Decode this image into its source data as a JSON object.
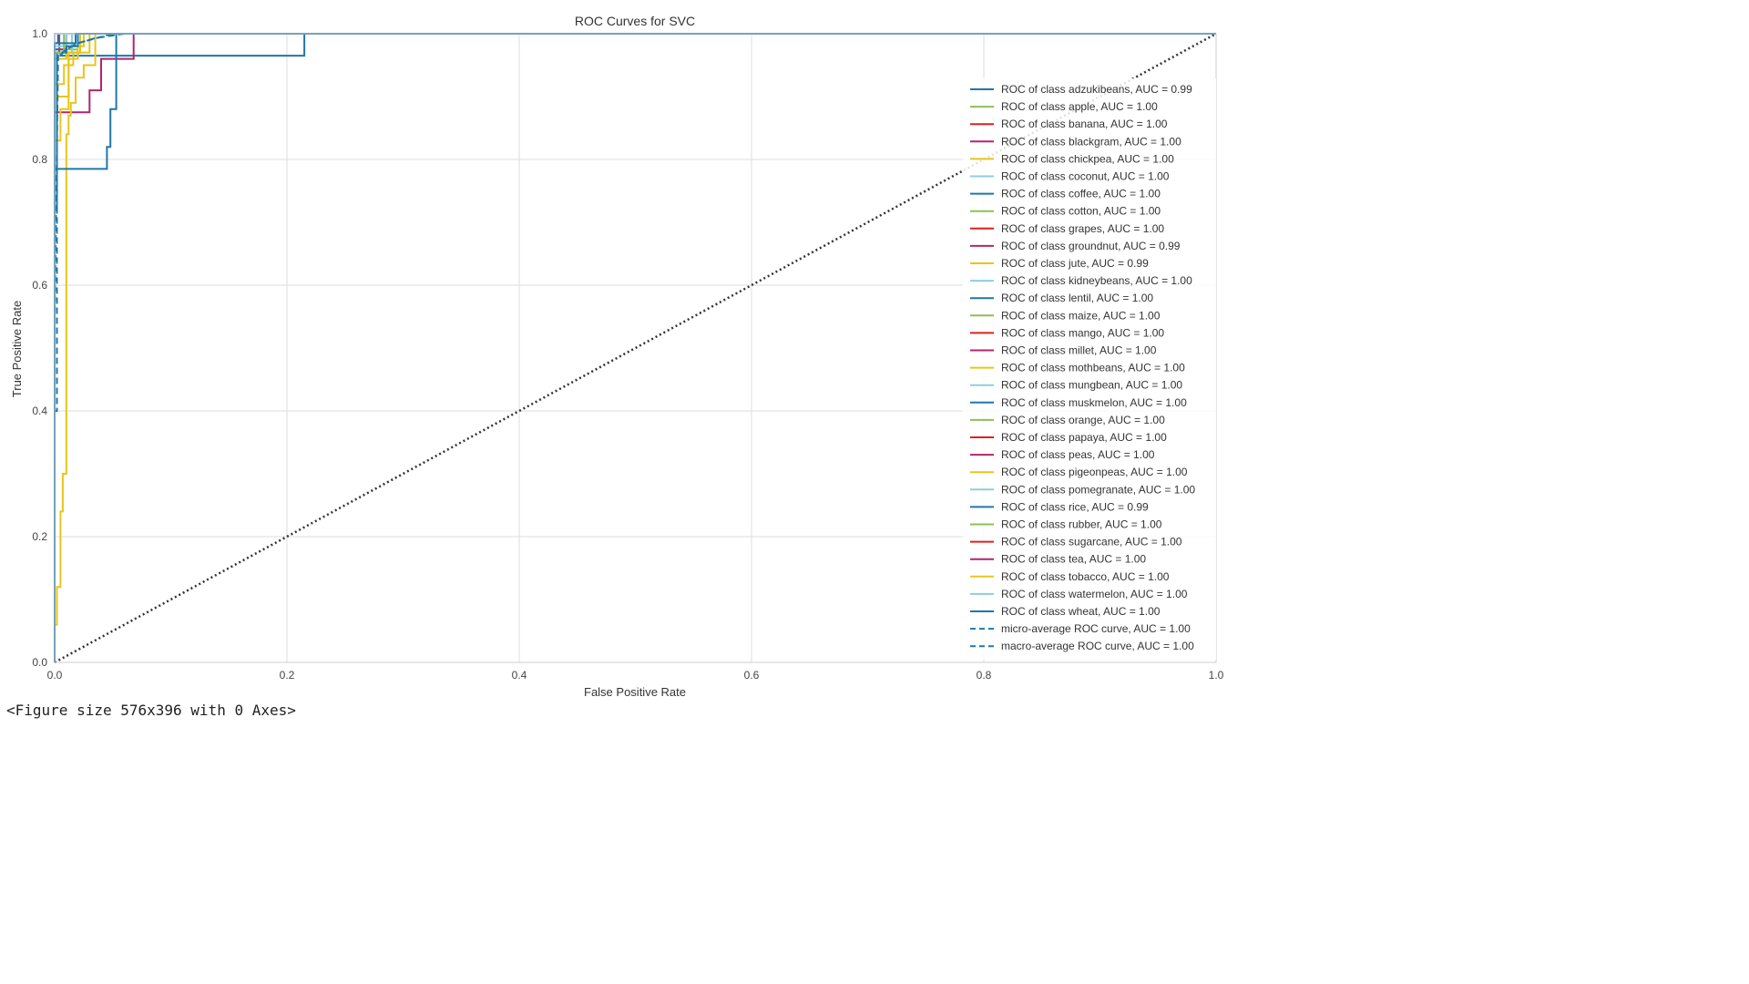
{
  "output_caption": "<Figure size 576x396 with 0 Axes>",
  "chart_data": {
    "type": "line",
    "title": "ROC Curves for SVC",
    "xlabel": "False Positive Rate",
    "ylabel": "True Positive Rate",
    "xlim": [
      0.0,
      1.0
    ],
    "ylim": [
      0.0,
      1.0
    ],
    "xticks": [
      "0.0",
      "0.2",
      "0.4",
      "0.6",
      "0.8",
      "1.0"
    ],
    "yticks": [
      "0.0",
      "0.2",
      "0.4",
      "0.6",
      "0.8",
      "1.0"
    ],
    "grid": true,
    "legend_position": "center-right",
    "colors": [
      "#1f77a8",
      "#8cc152",
      "#e0211e",
      "#b5246a",
      "#e8c51a",
      "#8fcde0"
    ],
    "series": [
      {
        "name": "ROC of class adzukibeans, AUC = 0.99",
        "color": "#1f77a8",
        "style": "solid",
        "x": [
          0,
          0,
          0.005,
          0.005,
          0.215,
          0.215,
          1
        ],
        "y": [
          0,
          0.97,
          0.97,
          0.965,
          0.965,
          1,
          1
        ]
      },
      {
        "name": "ROC of class apple, AUC = 1.00",
        "color": "#8cc152",
        "style": "solid",
        "x": [
          0,
          0,
          1
        ],
        "y": [
          0,
          1,
          1
        ]
      },
      {
        "name": "ROC of class banana, AUC = 1.00",
        "color": "#e0211e",
        "style": "solid",
        "x": [
          0,
          0,
          1
        ],
        "y": [
          0,
          1,
          1
        ]
      },
      {
        "name": "ROC of class blackgram, AUC = 1.00",
        "color": "#b5246a",
        "style": "solid",
        "x": [
          0,
          0,
          0.03,
          0.03,
          0.04,
          0.04,
          0.068,
          0.068,
          1
        ],
        "y": [
          0,
          0.875,
          0.875,
          0.91,
          0.91,
          0.96,
          0.96,
          1,
          1
        ]
      },
      {
        "name": "ROC of class chickpea, AUC = 1.00",
        "color": "#e8c51a",
        "style": "solid",
        "x": [
          0,
          0,
          0.01,
          0.01,
          0.025,
          0.025,
          1
        ],
        "y": [
          0,
          0.96,
          0.96,
          0.98,
          0.98,
          1,
          1
        ]
      },
      {
        "name": "ROC of class coconut, AUC = 1.00",
        "color": "#8fcde0",
        "style": "solid",
        "x": [
          0,
          0,
          1
        ],
        "y": [
          0,
          1,
          1
        ]
      },
      {
        "name": "ROC of class coffee, AUC = 1.00",
        "color": "#1f77a8",
        "style": "solid",
        "x": [
          0,
          0,
          0.022,
          0.022,
          1
        ],
        "y": [
          0,
          0.97,
          0.97,
          1,
          1
        ]
      },
      {
        "name": "ROC of class cotton, AUC = 1.00",
        "color": "#8cc152",
        "style": "solid",
        "x": [
          0,
          0,
          0.02,
          0.02,
          1
        ],
        "y": [
          0,
          0.975,
          0.975,
          1,
          1
        ]
      },
      {
        "name": "ROC of class grapes, AUC = 1.00",
        "color": "#e0211e",
        "style": "solid",
        "x": [
          0,
          0,
          1
        ],
        "y": [
          0,
          1,
          1
        ]
      },
      {
        "name": "ROC of class groundnut, AUC = 0.99",
        "color": "#b5246a",
        "style": "solid",
        "x": [
          0,
          0,
          0.003,
          0.003,
          1
        ],
        "y": [
          0,
          0.985,
          0.985,
          1,
          1
        ]
      },
      {
        "name": "ROC of class jute, AUC = 0.99",
        "color": "#e8c51a",
        "style": "solid",
        "x": [
          0,
          0,
          0.002,
          0.002,
          0.005,
          0.005,
          0.007,
          0.007,
          0.01,
          0.01,
          0.012,
          0.012,
          0.014,
          0.014,
          0.018,
          0.018,
          0.025,
          0.025,
          0.035,
          0.035,
          1
        ],
        "y": [
          0,
          0.06,
          0.06,
          0.12,
          0.12,
          0.24,
          0.24,
          0.3,
          0.3,
          0.84,
          0.84,
          0.87,
          0.87,
          0.89,
          0.89,
          0.93,
          0.93,
          0.95,
          0.95,
          1,
          1
        ]
      },
      {
        "name": "ROC of class kidneybeans, AUC = 1.00",
        "color": "#8fcde0",
        "style": "solid",
        "x": [
          0,
          0,
          1
        ],
        "y": [
          0,
          1,
          1
        ]
      },
      {
        "name": "ROC of class lentil, AUC = 1.00",
        "color": "#1f77a8",
        "style": "solid",
        "x": [
          0,
          0,
          0.045,
          0.045,
          0.048,
          0.048,
          0.053,
          0.053,
          1
        ],
        "y": [
          0,
          0.785,
          0.785,
          0.82,
          0.82,
          0.88,
          0.88,
          1,
          1
        ]
      },
      {
        "name": "ROC of class maize, AUC = 1.00",
        "color": "#8cc152",
        "style": "solid",
        "x": [
          0,
          0,
          0.015,
          0.015,
          1
        ],
        "y": [
          0,
          0.97,
          0.97,
          1,
          1
        ]
      },
      {
        "name": "ROC of class mango, AUC = 1.00",
        "color": "#e0211e",
        "style": "solid",
        "x": [
          0,
          0,
          1
        ],
        "y": [
          0,
          1,
          1
        ]
      },
      {
        "name": "ROC of class millet, AUC = 1.00",
        "color": "#b5246a",
        "style": "solid",
        "x": [
          0,
          0,
          0.01,
          0.01,
          1
        ],
        "y": [
          0,
          0.975,
          0.975,
          1,
          1
        ]
      },
      {
        "name": "ROC of class mothbeans, AUC = 1.00",
        "color": "#e8c51a",
        "style": "solid",
        "x": [
          0,
          0,
          0.008,
          0.008,
          0.016,
          0.016,
          0.022,
          0.022,
          1
        ],
        "y": [
          0,
          0.92,
          0.92,
          0.95,
          0.95,
          0.97,
          0.97,
          1,
          1
        ]
      },
      {
        "name": "ROC of class mungbean, AUC = 1.00",
        "color": "#8fcde0",
        "style": "solid",
        "x": [
          0,
          0,
          0.015,
          0.015,
          1
        ],
        "y": [
          0,
          0.97,
          0.97,
          1,
          1
        ]
      },
      {
        "name": "ROC of class muskmelon, AUC = 1.00",
        "color": "#1f77a8",
        "style": "solid",
        "x": [
          0,
          0,
          0.002,
          0.002,
          0.004,
          0.004,
          1
        ],
        "y": [
          0,
          0.72,
          0.72,
          0.97,
          0.97,
          1,
          1
        ]
      },
      {
        "name": "ROC of class orange, AUC = 1.00",
        "color": "#8cc152",
        "style": "solid",
        "x": [
          0,
          0,
          1
        ],
        "y": [
          0,
          1,
          1
        ]
      },
      {
        "name": "ROC of class papaya, AUC = 1.00",
        "color": "#e0211e",
        "style": "solid",
        "x": [
          0,
          0,
          1
        ],
        "y": [
          0,
          1,
          1
        ]
      },
      {
        "name": "ROC of class peas, AUC = 1.00",
        "color": "#b5246a",
        "style": "solid",
        "x": [
          0,
          0,
          1
        ],
        "y": [
          0,
          1,
          1
        ]
      },
      {
        "name": "ROC of class pigeonpeas, AUC = 1.00",
        "color": "#e8c51a",
        "style": "solid",
        "x": [
          0,
          0,
          0.012,
          0.012,
          0.02,
          0.02,
          1
        ],
        "y": [
          0,
          0.9,
          0.9,
          0.96,
          0.96,
          1,
          1
        ]
      },
      {
        "name": "ROC of class pomegranate, AUC = 1.00",
        "color": "#8fcde0",
        "style": "solid",
        "x": [
          0,
          0,
          0.01,
          0.01,
          1
        ],
        "y": [
          0,
          0.98,
          0.98,
          1,
          1
        ]
      },
      {
        "name": "ROC of class rice, AUC = 0.99",
        "color": "#1f77a8",
        "style": "solid",
        "x": [
          0,
          0,
          0.01,
          0.01,
          0.02,
          0.02,
          1
        ],
        "y": [
          0,
          0.97,
          0.97,
          0.98,
          0.98,
          1,
          1
        ]
      },
      {
        "name": "ROC of class rubber, AUC = 1.00",
        "color": "#8cc152",
        "style": "solid",
        "x": [
          0,
          0,
          0.008,
          0.008,
          1
        ],
        "y": [
          0,
          0.97,
          0.97,
          1,
          1
        ]
      },
      {
        "name": "ROC of class sugarcane, AUC = 1.00",
        "color": "#e0211e",
        "style": "solid",
        "x": [
          0,
          0,
          1
        ],
        "y": [
          0,
          1,
          1
        ]
      },
      {
        "name": "ROC of class tea, AUC = 1.00",
        "color": "#b5246a",
        "style": "solid",
        "x": [
          0,
          0,
          1
        ],
        "y": [
          0,
          1,
          1
        ]
      },
      {
        "name": "ROC of class tobacco, AUC = 1.00",
        "color": "#e8c51a",
        "style": "solid",
        "x": [
          0,
          0,
          0.005,
          0.005,
          0.012,
          0.012,
          0.03,
          0.03,
          1
        ],
        "y": [
          0,
          0.83,
          0.83,
          0.88,
          0.88,
          0.97,
          0.97,
          1,
          1
        ]
      },
      {
        "name": "ROC of class watermelon, AUC = 1.00",
        "color": "#8fcde0",
        "style": "solid",
        "x": [
          0,
          0,
          1
        ],
        "y": [
          0,
          1,
          1
        ]
      },
      {
        "name": "ROC of class wheat, AUC = 1.00",
        "color": "#1f77a8",
        "style": "solid",
        "x": [
          0,
          0,
          0.018,
          0.018,
          1
        ],
        "y": [
          0,
          0.985,
          0.985,
          1,
          1
        ]
      },
      {
        "name": "micro-average ROC curve, AUC = 1.00",
        "color": "#1f77a8",
        "style": "dashed",
        "x": [
          0,
          0,
          0.002,
          0.002,
          0.01,
          0.02,
          0.03,
          0.05,
          1
        ],
        "y": [
          0,
          0.4,
          0.4,
          0.96,
          0.975,
          0.985,
          0.99,
          1,
          1
        ]
      },
      {
        "name": "macro-average ROC curve, AUC = 1.00",
        "color": "#1f77a8",
        "style": "dashed",
        "x": [
          0,
          0,
          0.003,
          0.01,
          0.02,
          0.035,
          0.06,
          1
        ],
        "y": [
          0,
          0.55,
          0.965,
          0.975,
          0.985,
          0.993,
          1,
          1
        ]
      },
      {
        "name": "",
        "color": "#333333",
        "style": "dotted",
        "x": [
          0,
          1
        ],
        "y": [
          0,
          1
        ]
      }
    ]
  }
}
